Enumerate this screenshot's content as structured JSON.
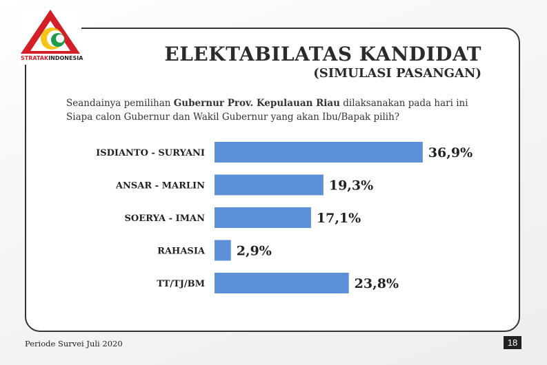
{
  "brand": {
    "logo_text_red": "STRATAK",
    "logo_text_dark": "INDONESIA"
  },
  "header": {
    "title": "ELEKTABILATAS KANDIDAT",
    "subtitle": "(SIMULASI PASANGAN)"
  },
  "question": {
    "part1": "Seandainya pemilihan ",
    "bold": "Gubernur Prov. Kepulauan Riau",
    "part2": " dilaksanakan pada hari ini",
    "line2": "Siapa calon Gubernur dan Wakil Gubernur yang akan Ibu/Bapak pilih?"
  },
  "chart_data": {
    "type": "bar",
    "orientation": "horizontal",
    "categories": [
      "ISDIANTO - SURYANI",
      "ANSAR - MARLIN",
      "SOERYA - IMAN",
      "RAHASIA",
      "TT/TJ/BM"
    ],
    "values": [
      36.9,
      19.3,
      17.1,
      2.9,
      23.8
    ],
    "value_labels": [
      "36,9%",
      "19,3%",
      "17,1%",
      "2,9%",
      "23,8%"
    ],
    "unit": "%",
    "bar_color": "#5b8fd6",
    "grid": false
  },
  "footer": {
    "period": "Periode Survei Juli 2020",
    "page": "18"
  },
  "colors": {
    "frame": "#333333",
    "accent_red": "#d31f26",
    "accent_yellow": "#f5c518",
    "accent_green": "#1d9a4a"
  }
}
